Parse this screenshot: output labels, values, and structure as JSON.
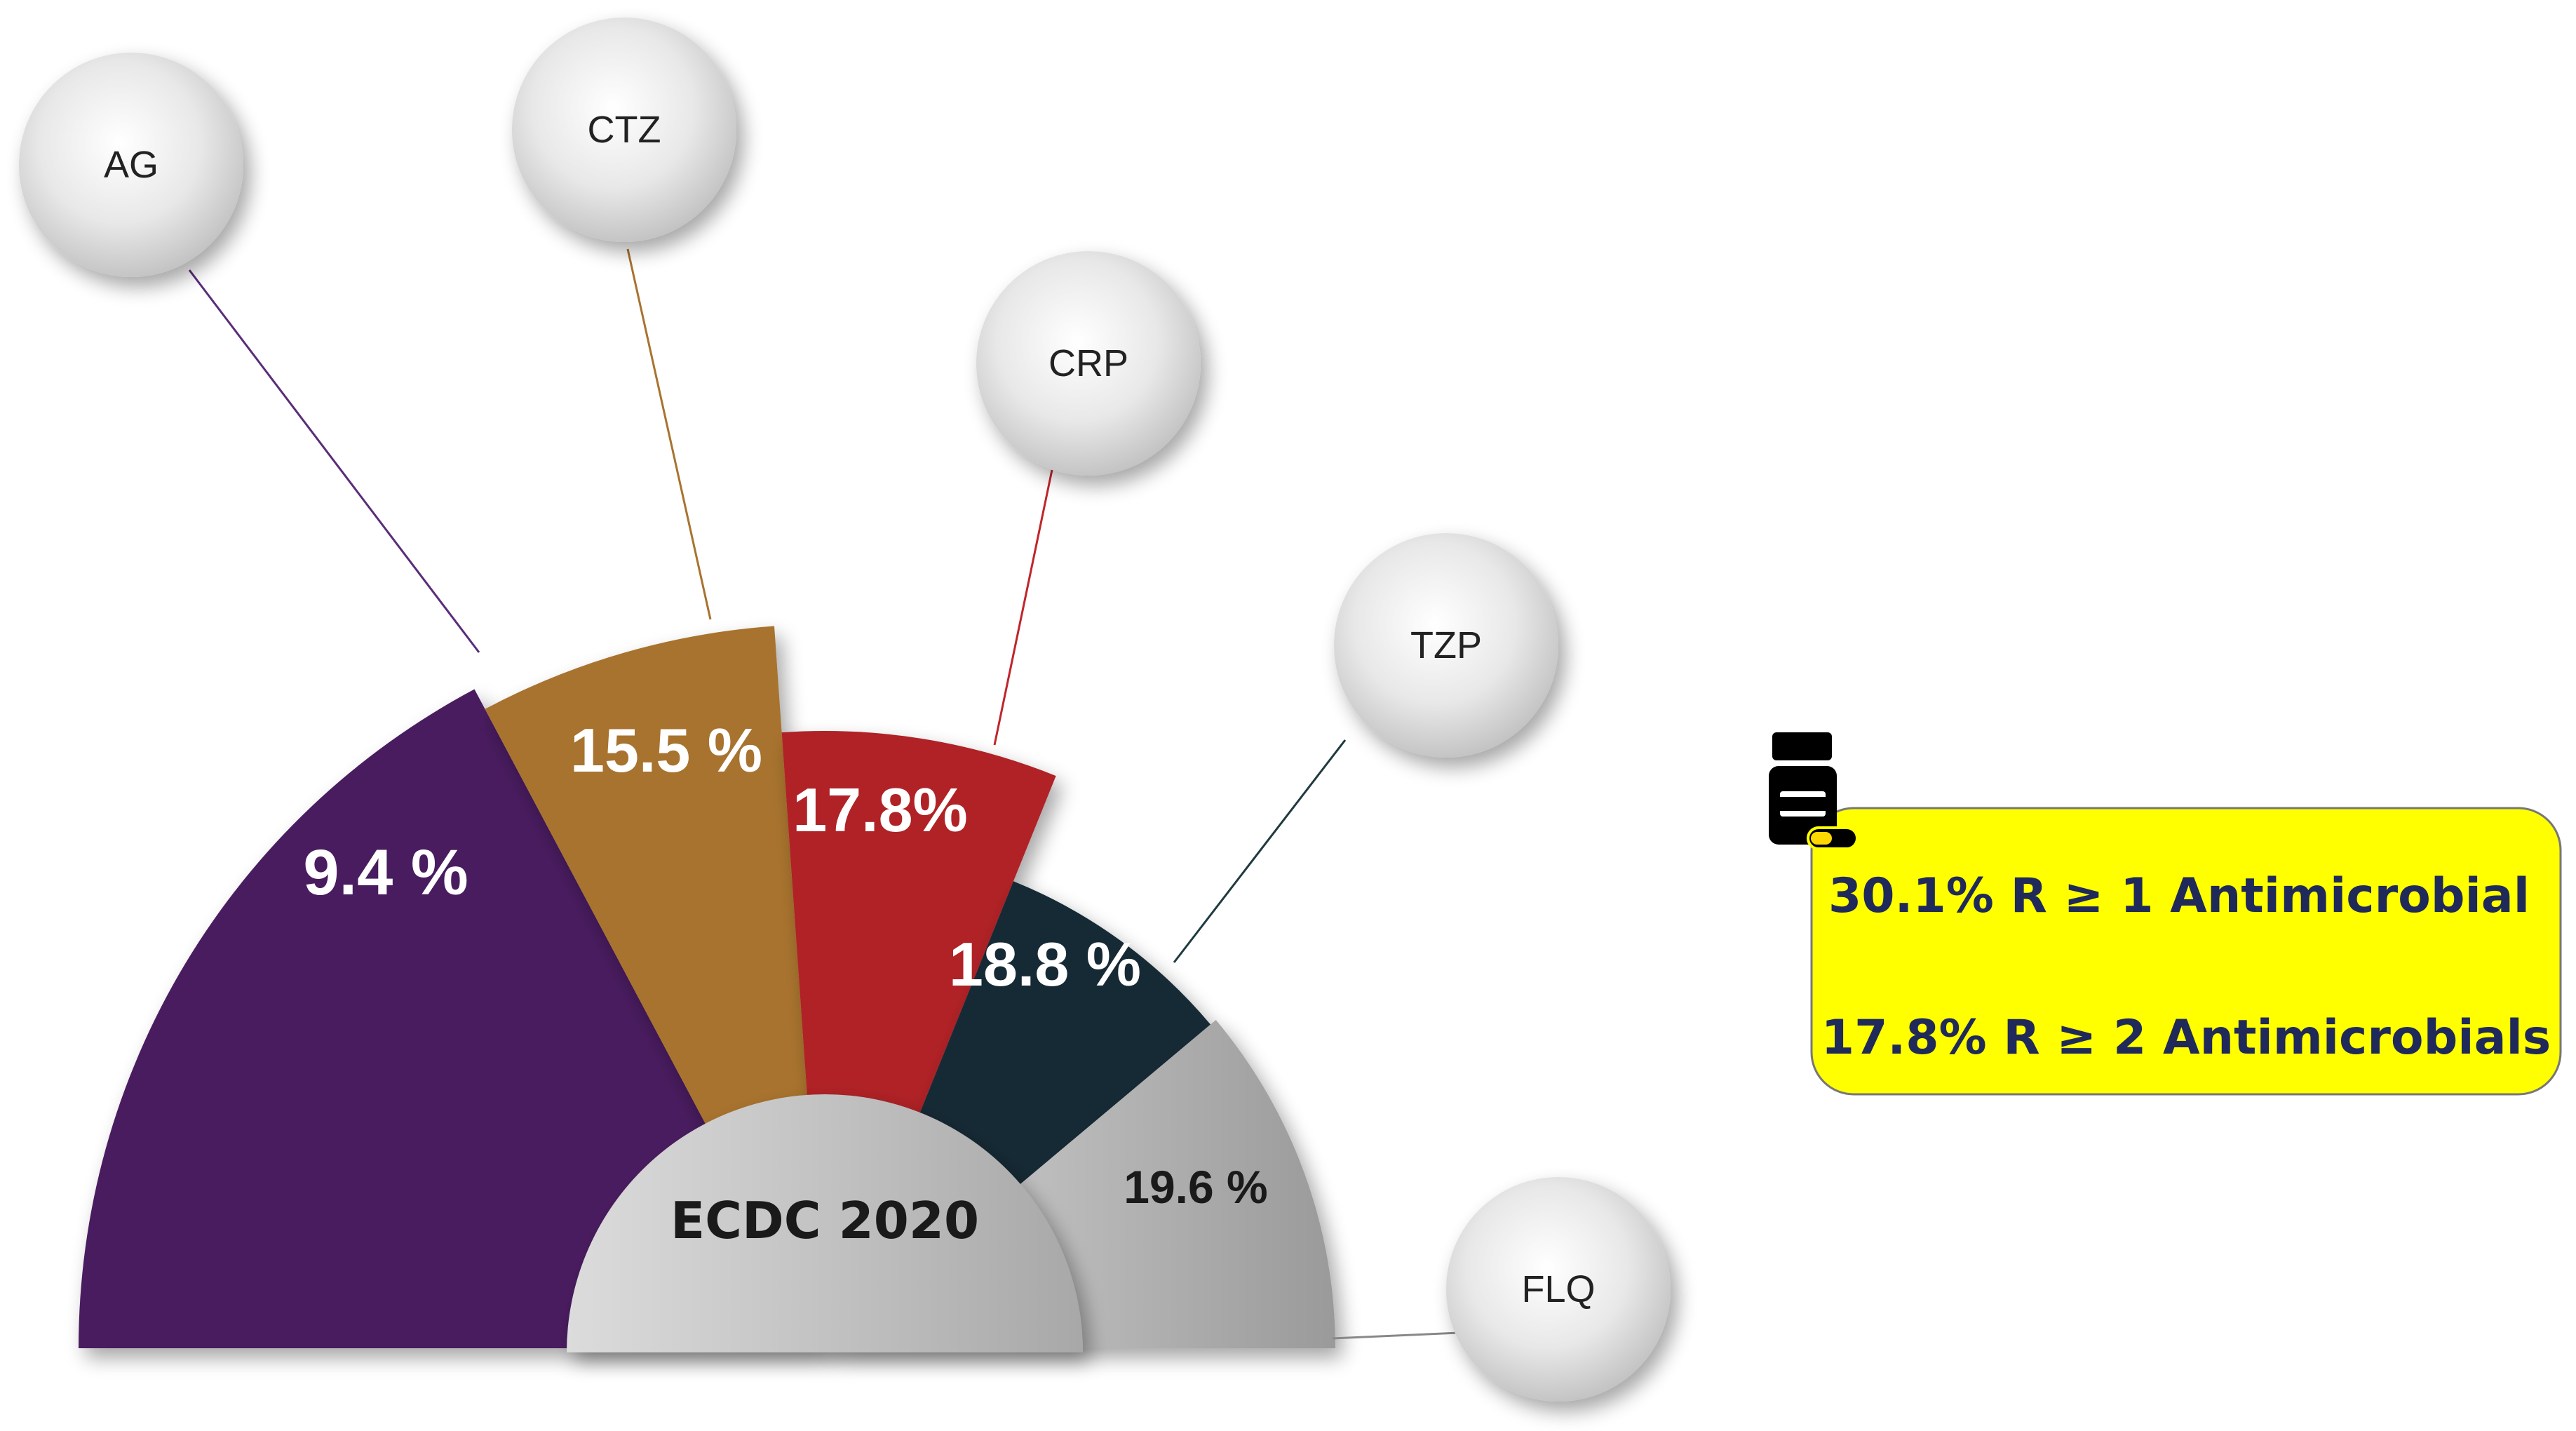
{
  "center_label": "ECDC 2020",
  "segments": [
    {
      "class": "AG",
      "value": 9.4,
      "label": "9.4 %",
      "color": "#4a1e5e"
    },
    {
      "class": "CTZ",
      "value": 15.5,
      "label": "15.5 %",
      "color": "#a8732f"
    },
    {
      "class": "CRP",
      "value": 17.8,
      "label": "17.8%",
      "color": "#b02127"
    },
    {
      "class": "TZP",
      "value": 18.8,
      "label": "18.8 %",
      "color": "#152c34"
    },
    {
      "class": "FLQ",
      "value": 19.6,
      "label": "19.6 %",
      "color": "#a9a9a9"
    }
  ],
  "summary": {
    "line1": "30.1% R ≥ 1 Antimicrobial",
    "line2": "17.8% R ≥ 2 Antimicrobials",
    "background": "#ffff00",
    "icon": "medicine-bottle-icon"
  }
}
